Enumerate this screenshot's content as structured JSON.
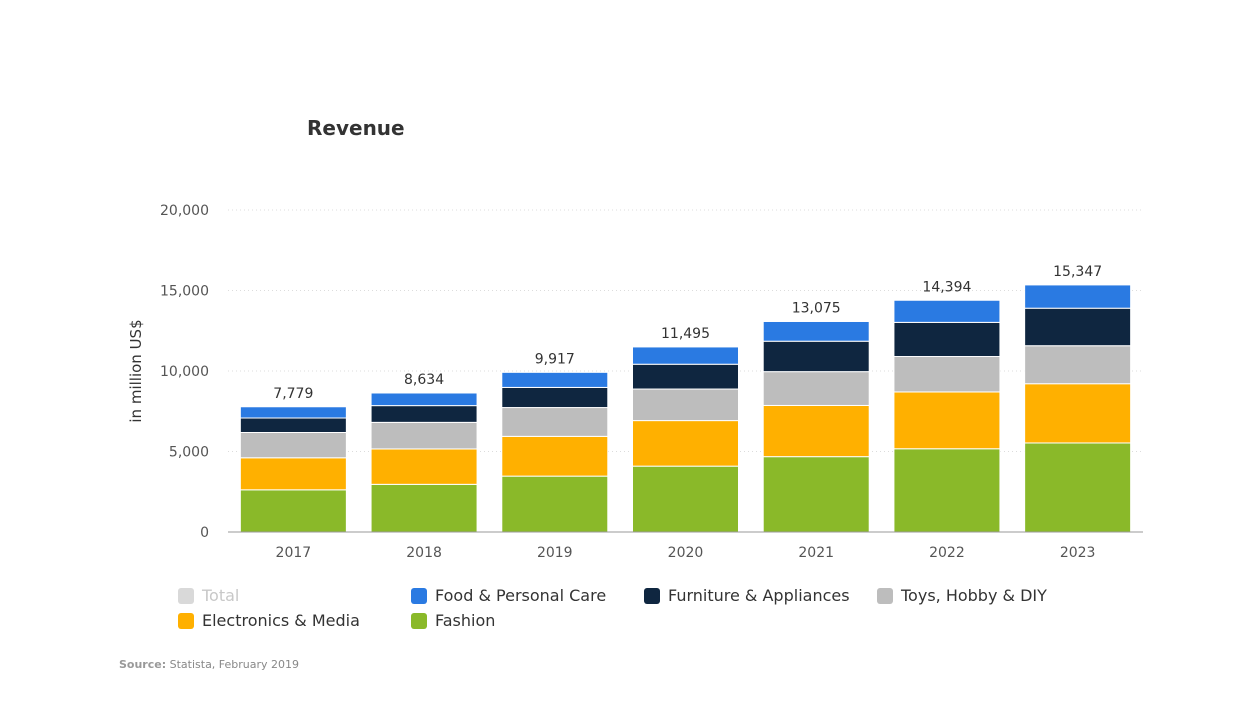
{
  "chart_data": {
    "type": "bar",
    "stacked": true,
    "title": "Revenue",
    "ylabel": "in million US$",
    "xlabel": "",
    "ylim": [
      0,
      20000
    ],
    "yticks": [
      0,
      5000,
      10000,
      15000,
      20000
    ],
    "ytick_labels": [
      "0",
      "5,000",
      "10,000",
      "15,000",
      "20,000"
    ],
    "grid": true,
    "categories": [
      "2017",
      "2018",
      "2019",
      "2020",
      "2021",
      "2022",
      "2023"
    ],
    "totals": [
      7779,
      8634,
      9917,
      11495,
      13075,
      14394,
      15347
    ],
    "total_labels": [
      "7,779",
      "8,634",
      "9,917",
      "11,495",
      "13,075",
      "14,394",
      "15,347"
    ],
    "series": [
      {
        "name": "Fashion",
        "color": "#8ab929",
        "values": [
          2620,
          2960,
          3470,
          4090,
          4680,
          5170,
          5530
        ]
      },
      {
        "name": "Electronics & Media",
        "color": "#ffb000",
        "values": [
          1990,
          2200,
          2470,
          2830,
          3180,
          3530,
          3680
        ]
      },
      {
        "name": "Toys, Hobby & DIY",
        "color": "#bdbdbd",
        "values": [
          1570,
          1650,
          1790,
          1960,
          2100,
          2200,
          2360
        ]
      },
      {
        "name": "Furniture & Appliances",
        "color": "#0f2640",
        "values": [
          900,
          1040,
          1250,
          1540,
          1890,
          2120,
          2330
        ]
      },
      {
        "name": "Food & Personal Care",
        "color": "#2a7ae2",
        "values": [
          699,
          784,
          937,
          1075,
          1225,
          1374,
          1447
        ]
      }
    ],
    "legend": {
      "placement": "bottom",
      "items": [
        {
          "name": "Total",
          "color": "#d9d9d9",
          "hidden": true
        },
        {
          "name": "Food & Personal Care",
          "color": "#2a7ae2",
          "hidden": false
        },
        {
          "name": "Furniture & Appliances",
          "color": "#0f2640",
          "hidden": false
        },
        {
          "name": "Toys, Hobby & DIY",
          "color": "#bdbdbd",
          "hidden": false
        },
        {
          "name": "Electronics & Media",
          "color": "#ffb000",
          "hidden": false
        },
        {
          "name": "Fashion",
          "color": "#8ab929",
          "hidden": false
        }
      ]
    }
  },
  "source": {
    "label": "Source:",
    "text": " Statista, February 2019"
  }
}
